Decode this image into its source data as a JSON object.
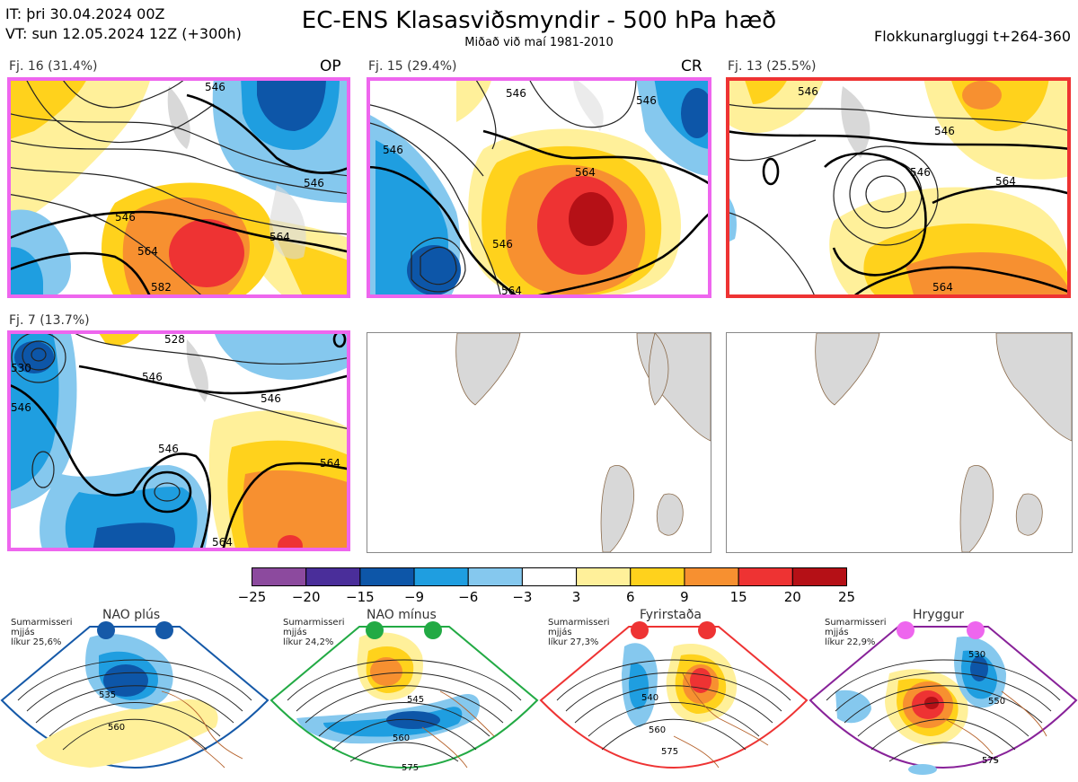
{
  "header": {
    "it_line": "IT: þri 30.04.2024 00Z",
    "vt_line": "VT: sun 12.05.2024 12Z  (+300h)",
    "title": "EC-ENS Klasasviðsmyndir - 500 hPa hæð",
    "subtitle": "Miðað við maí 1981-2010",
    "window_label": "Flokkunargluggi t+264-360"
  },
  "panels": [
    {
      "label": "Fj. 16 (31.4%)",
      "tag": "OP",
      "border_color": "#ee66ee",
      "contour_labels": [
        "546",
        "546",
        "564",
        "582",
        "546",
        "564"
      ]
    },
    {
      "label": "Fj. 15 (29.4%)",
      "tag": "CR",
      "border_color": "#ee66ee",
      "contour_labels": [
        "546",
        "546",
        "546",
        "564",
        "564",
        "546"
      ]
    },
    {
      "label": "Fj. 13 (25.5%)",
      "tag": "",
      "border_color": "#ee3333",
      "contour_labels": [
        "546",
        "546",
        "546",
        "564",
        "564"
      ]
    },
    {
      "label": "Fj. 7 (13.7%)",
      "tag": "",
      "border_color": "#ee66ee",
      "contour_labels": [
        "528",
        "546",
        "546",
        "546",
        "564",
        "530",
        "546",
        "564"
      ]
    }
  ],
  "chart_data": {
    "type": "heatmap",
    "colorbar": {
      "ticks": [
        "−25",
        "−20",
        "−15",
        "−9",
        "−6",
        "−3",
        "3",
        "6",
        "9",
        "15",
        "20",
        "25"
      ],
      "colors": [
        "#8c4a9e",
        "#4a2e9a",
        "#0d56a8",
        "#1f9ee0",
        "#85c8ee",
        "#ffffff",
        "#fff09a",
        "#ffd21c",
        "#f79030",
        "#ee3333",
        "#b51016"
      ]
    }
  },
  "regimes": [
    {
      "name": "NAO plús",
      "small": [
        "Sumarmisseri",
        "mjjás",
        "líkur 25,6%"
      ],
      "color": "#1559a8",
      "contour_labels": [
        "535",
        "560"
      ]
    },
    {
      "name": "NAO mínus",
      "small": [
        "Sumarmisseri",
        "mjjás",
        "líkur 24,2%"
      ],
      "color": "#22aa44",
      "contour_labels": [
        "545",
        "560",
        "575"
      ]
    },
    {
      "name": "Fyrirstaða",
      "small": [
        "Sumarmisseri",
        "mjjás",
        "líkur 27,3%"
      ],
      "color": "#ee3333",
      "contour_labels": [
        "540",
        "560",
        "575"
      ]
    },
    {
      "name": "Hryggur",
      "small": [
        "Sumarmisseri",
        "mjjás",
        "líkur 22,9%"
      ],
      "color": "#ee66ee",
      "contour_labels": [
        "530",
        "550",
        "575"
      ]
    }
  ]
}
